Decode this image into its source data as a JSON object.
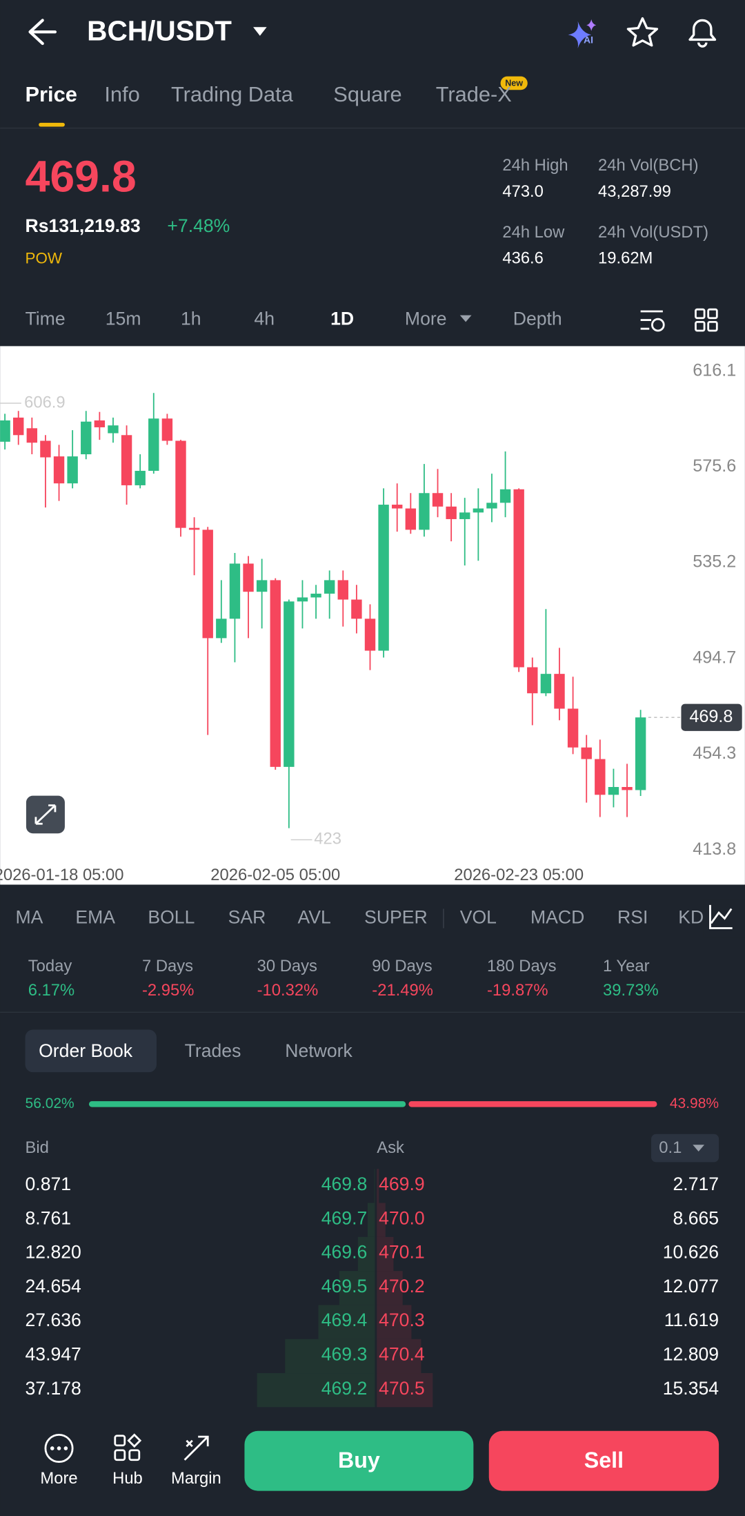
{
  "header": {
    "pair": "BCH/USDT",
    "ai_badge": "AI"
  },
  "tabs": [
    "Price",
    "Info",
    "Trading Data",
    "Square",
    "Trade-X"
  ],
  "tab_badge": "New",
  "ticker": {
    "price": "469.8",
    "fiat": "Rs131,219.83",
    "change": "+7.48%",
    "tag": "POW",
    "stats": [
      {
        "label": "24h High",
        "value": "473.0"
      },
      {
        "label": "24h Vol(BCH)",
        "value": "43,287.99"
      },
      {
        "label": "24h Low",
        "value": "436.6"
      },
      {
        "label": "24h Vol(USDT)",
        "value": "19.62M"
      }
    ]
  },
  "intervals": [
    "Time",
    "15m",
    "1h",
    "4h",
    "1D",
    "More",
    "Depth"
  ],
  "chart_data": {
    "type": "candlestick",
    "up_color": "#2ebd85",
    "down_color": "#f6465d",
    "open": [
      586.3,
      596.5,
      592.0,
      586.7,
      580.1,
      568.7,
      581.0,
      595.3,
      589.9,
      589.1,
      567.9,
      574.0,
      596.1,
      586.7,
      549.9,
      549.1,
      503.3,
      511.5,
      534.8,
      522.9,
      527.8,
      448.9,
      518.8,
      520.5,
      522.1,
      527.8,
      519.6,
      511.5,
      498.0,
      559.7,
      558.1,
      549.1,
      564.6,
      558.9,
      553.6,
      556.4,
      558.1,
      560.5,
      566.2,
      491.0,
      480.0,
      488.2,
      473.5,
      457.1,
      452.2,
      437.1,
      440.4,
      439.1
    ],
    "high": [
      598.1,
      599.3,
      596.5,
      589.1,
      585.0,
      591.2,
      599.3,
      598.9,
      596.5,
      593.2,
      581.0,
      606.9,
      598.1,
      587.1,
      554.4,
      550.3,
      527.8,
      539.3,
      538.0,
      536.8,
      528.6,
      519.6,
      527.8,
      525.8,
      531.9,
      531.9,
      525.8,
      517.6,
      566.6,
      568.7,
      564.6,
      576.9,
      574.8,
      564.6,
      562.6,
      566.6,
      572.8,
      582.2,
      566.6,
      495.1,
      515.6,
      499.2,
      487.0,
      462.4,
      460.4,
      448.1,
      450.2,
      473.0
    ],
    "low": [
      583.0,
      585.0,
      581.0,
      558.5,
      561.3,
      566.6,
      578.9,
      587.1,
      585.9,
      559.7,
      566.6,
      572.8,
      585.0,
      546.2,
      529.9,
      462.4,
      501.3,
      493.1,
      503.3,
      507.4,
      447.7,
      423.0,
      507.4,
      511.5,
      511.5,
      508.2,
      505.3,
      489.8,
      495.1,
      548.3,
      547.4,
      546.2,
      554.4,
      544.2,
      534.0,
      536.0,
      552.3,
      554.4,
      489.0,
      466.5,
      478.8,
      468.6,
      454.3,
      433.8,
      427.7,
      431.8,
      427.7,
      436.6
    ],
    "close": [
      595.3,
      589.1,
      585.9,
      579.7,
      568.7,
      580.1,
      594.8,
      592.4,
      593.2,
      567.9,
      574.0,
      596.1,
      586.7,
      549.9,
      549.1,
      503.3,
      511.5,
      534.8,
      522.9,
      527.8,
      448.9,
      518.8,
      520.5,
      522.1,
      527.8,
      519.6,
      511.5,
      498.0,
      559.7,
      558.1,
      549.1,
      564.6,
      558.9,
      553.6,
      556.4,
      558.1,
      560.5,
      566.2,
      491.0,
      480.0,
      488.2,
      473.5,
      457.1,
      452.2,
      437.1,
      440.4,
      439.1,
      469.8
    ],
    "ylim": [
      407.3,
      626.7
    ],
    "yticks": [
      413.8,
      454.3,
      494.7,
      535.2,
      575.6,
      616.1
    ],
    "xticks": [
      {
        "value": 4,
        "label": "2026-01-18 05:00"
      },
      {
        "value": 20,
        "label": "2026-02-05 05:00"
      },
      {
        "value": 38,
        "label": "2026-02-23 05:00"
      }
    ],
    "last_price": 469.8,
    "grid": false
  },
  "indicators": [
    "MA",
    "EMA",
    "BOLL",
    "SAR",
    "AVL",
    "SUPER",
    "VOL",
    "MACD",
    "RSI",
    "KD"
  ],
  "performance": [
    {
      "period": "Today",
      "change": "6.17%"
    },
    {
      "period": "7 Days",
      "change": "-2.95%"
    },
    {
      "period": "30 Days",
      "change": "-10.32%"
    },
    {
      "period": "90 Days",
      "change": "-21.49%"
    },
    {
      "period": "180 Days",
      "change": "-19.87%"
    },
    {
      "period": "1 Year",
      "change": "39.73%"
    }
  ],
  "order_book": {
    "tabs": [
      "Order Book",
      "Trades",
      "Network"
    ],
    "bid_ratio": {
      "value": 56.02,
      "label": "56.02%"
    },
    "ask_ratio": {
      "value": 43.98,
      "label": "43.98%"
    },
    "bid_header": "Bid",
    "ask_header": "Ask",
    "precision": "0.1",
    "rows": [
      {
        "bid_amount": "0.871",
        "bid_price": "469.8",
        "ask_price": "469.9",
        "ask_amount": "2.717"
      },
      {
        "bid_amount": "8.761",
        "bid_price": "469.7",
        "ask_price": "470.0",
        "ask_amount": "8.665"
      },
      {
        "bid_amount": "12.820",
        "bid_price": "469.6",
        "ask_price": "470.1",
        "ask_amount": "10.626"
      },
      {
        "bid_amount": "24.654",
        "bid_price": "469.5",
        "ask_price": "470.2",
        "ask_amount": "12.077"
      },
      {
        "bid_amount": "27.636",
        "bid_price": "469.4",
        "ask_price": "470.3",
        "ask_amount": "11.619"
      },
      {
        "bid_amount": "43.947",
        "bid_price": "469.3",
        "ask_price": "470.4",
        "ask_amount": "12.809"
      },
      {
        "bid_amount": "37.178",
        "bid_price": "469.2",
        "ask_price": "470.5",
        "ask_amount": "15.354"
      }
    ]
  },
  "bottom_bar": {
    "items": [
      "More",
      "Hub",
      "Margin"
    ],
    "buy": "Buy",
    "sell": "Sell"
  }
}
